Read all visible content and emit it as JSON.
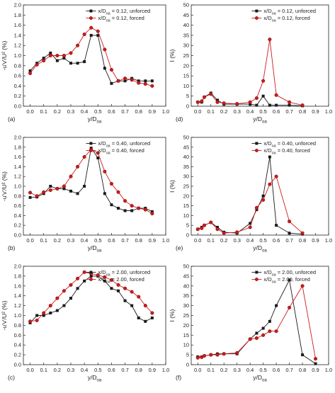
{
  "colors": {
    "unforced": "#1a1a1a",
    "forced": "#cc1b1b",
    "forced_stroke": "#7a0b0b"
  },
  "chart_data": [
    {
      "type": "line",
      "panel": "(a)",
      "ylabel": "-u'v'/U² (%)",
      "xlabel": "y/D",
      "xlim": [
        -0.05,
        1.0
      ],
      "ylim": [
        0.0,
        2.0
      ],
      "xticks": [
        "0.0",
        "0.1",
        "0.2",
        "0.3",
        "0.4",
        "0.5",
        "0.6",
        "0.7",
        "0.8",
        "0.9",
        "1.0"
      ],
      "yticks": [
        "0.0",
        "0.2",
        "0.4",
        "0.6",
        "0.8",
        "1.0",
        "1.2",
        "1.4",
        "1.6",
        "1.8",
        "2.0"
      ],
      "legend": "top-right",
      "series": [
        {
          "name": "x/D = 0.12, unforced",
          "marker": "square",
          "x": [
            0.0,
            0.05,
            0.1,
            0.15,
            0.2,
            0.25,
            0.3,
            0.35,
            0.4,
            0.45,
            0.5,
            0.55,
            0.6,
            0.65,
            0.7,
            0.75,
            0.8,
            0.85,
            0.9
          ],
          "y": [
            0.7,
            0.85,
            0.95,
            1.05,
            0.9,
            0.95,
            0.85,
            0.85,
            0.88,
            1.4,
            1.4,
            0.75,
            0.45,
            0.5,
            0.5,
            0.55,
            0.5,
            0.5,
            0.5
          ]
        },
        {
          "name": "x/D = 0.12, forced",
          "marker": "circle",
          "x": [
            0.0,
            0.05,
            0.1,
            0.15,
            0.2,
            0.25,
            0.3,
            0.35,
            0.4,
            0.45,
            0.5,
            0.55,
            0.6,
            0.65,
            0.7,
            0.75,
            0.8,
            0.85,
            0.9
          ],
          "y": [
            0.65,
            0.82,
            0.9,
            1.0,
            1.0,
            1.0,
            1.05,
            1.2,
            1.42,
            1.55,
            1.48,
            1.12,
            0.72,
            0.5,
            0.55,
            0.52,
            0.46,
            0.44,
            0.4
          ]
        }
      ]
    },
    {
      "type": "line",
      "panel": "(d)",
      "ylabel": "I (%)",
      "xlabel": "y/D",
      "xlim": [
        -0.05,
        1.0
      ],
      "ylim": [
        0,
        50
      ],
      "xticks": [
        "0.0",
        "0.1",
        "0.2",
        "0.3",
        "0.4",
        "0.5",
        "0.6",
        "0.7",
        "0.8",
        "0.9",
        "1.0"
      ],
      "yticks": [
        "0",
        "5",
        "10",
        "15",
        "20",
        "25",
        "30",
        "35",
        "40",
        "45",
        "50"
      ],
      "legend": "top-right",
      "series": [
        {
          "name": "x/D = 0.12, unforced",
          "marker": "square",
          "x": [
            0.0,
            0.03,
            0.05,
            0.1,
            0.15,
            0.2,
            0.3,
            0.4,
            0.45,
            0.5,
            0.55,
            0.6,
            0.7,
            0.8
          ],
          "y": [
            2.0,
            2.0,
            4.5,
            6.5,
            3.0,
            1.0,
            1.0,
            1.0,
            0.5,
            5.0,
            0.5,
            0.5,
            0.5,
            0.2
          ]
        },
        {
          "name": "x/D = 0.12, forced",
          "marker": "circle",
          "x": [
            0.0,
            0.03,
            0.05,
            0.1,
            0.15,
            0.2,
            0.3,
            0.4,
            0.45,
            0.5,
            0.55,
            0.6,
            0.7,
            0.8
          ],
          "y": [
            2.0,
            2.5,
            4.5,
            6.0,
            2.0,
            1.5,
            1.2,
            2.0,
            4.0,
            12.5,
            33.0,
            5.5,
            2.0,
            0.5
          ]
        }
      ]
    },
    {
      "type": "line",
      "panel": "(b)",
      "ylabel": "-u'v'/U² (%)",
      "xlabel": "y/D",
      "xlim": [
        -0.05,
        1.0
      ],
      "ylim": [
        0.0,
        2.0
      ],
      "xticks": [
        "0.0",
        "0.1",
        "0.2",
        "0.3",
        "0.4",
        "0.5",
        "0.6",
        "0.7",
        "0.8",
        "0.9",
        "1.0"
      ],
      "yticks": [
        "0.0",
        "0.2",
        "0.4",
        "0.6",
        "0.8",
        "1.0",
        "1.2",
        "1.4",
        "1.6",
        "1.8",
        "2.0"
      ],
      "legend": "top-right",
      "series": [
        {
          "name": "x/D = 0.40, unforced",
          "marker": "square",
          "x": [
            0.0,
            0.05,
            0.1,
            0.15,
            0.2,
            0.25,
            0.3,
            0.35,
            0.4,
            0.45,
            0.5,
            0.55,
            0.6,
            0.65,
            0.7,
            0.75,
            0.8,
            0.85,
            0.9
          ],
          "y": [
            0.77,
            0.78,
            0.85,
            1.0,
            0.95,
            0.95,
            0.9,
            0.85,
            1.0,
            1.78,
            1.58,
            0.85,
            0.62,
            0.55,
            0.5,
            0.5,
            0.55,
            0.55,
            0.48
          ]
        },
        {
          "name": "x/D = 0.40, forced",
          "marker": "circle",
          "x": [
            0.0,
            0.05,
            0.1,
            0.15,
            0.2,
            0.25,
            0.3,
            0.35,
            0.4,
            0.45,
            0.5,
            0.55,
            0.6,
            0.65,
            0.7,
            0.75,
            0.8,
            0.85,
            0.9
          ],
          "y": [
            0.87,
            0.8,
            0.88,
            0.92,
            0.95,
            1.0,
            1.2,
            1.4,
            1.6,
            1.75,
            1.68,
            1.3,
            1.05,
            0.88,
            0.7,
            0.6,
            0.55,
            0.52,
            0.44
          ]
        }
      ]
    },
    {
      "type": "line",
      "panel": "(e)",
      "ylabel": "I (%)",
      "xlabel": "y/D",
      "xlim": [
        -0.05,
        1.0
      ],
      "ylim": [
        0,
        50
      ],
      "xticks": [
        "0.0",
        "0.1",
        "0.2",
        "0.3",
        "0.4",
        "0.5",
        "0.6",
        "0.7",
        "0.8",
        "0.9",
        "1.0"
      ],
      "yticks": [
        "0",
        "5",
        "10",
        "15",
        "20",
        "25",
        "30",
        "35",
        "40",
        "45",
        "50"
      ],
      "legend": "top-right",
      "series": [
        {
          "name": "x/D = 0.40, unforced",
          "marker": "square",
          "x": [
            0.0,
            0.03,
            0.05,
            0.1,
            0.15,
            0.2,
            0.3,
            0.4,
            0.45,
            0.5,
            0.55,
            0.6,
            0.7,
            0.8
          ],
          "y": [
            3.0,
            4.0,
            5.0,
            6.5,
            4.0,
            1.5,
            1.0,
            6.0,
            13.0,
            20.0,
            40.0,
            5.0,
            1.0,
            0.5
          ]
        },
        {
          "name": "x/D = 0.40, forced",
          "marker": "circle",
          "x": [
            0.0,
            0.03,
            0.05,
            0.1,
            0.15,
            0.2,
            0.3,
            0.4,
            0.45,
            0.5,
            0.55,
            0.6,
            0.7,
            0.8
          ],
          "y": [
            3.0,
            3.5,
            5.0,
            6.5,
            3.0,
            1.0,
            1.5,
            4.0,
            14.0,
            18.0,
            26.0,
            30.0,
            7.0,
            1.0
          ]
        }
      ]
    },
    {
      "type": "line",
      "panel": "(c)",
      "ylabel": "-u'v'/U² (%)",
      "xlabel": "y/D",
      "xlim": [
        -0.05,
        1.0
      ],
      "ylim": [
        0.0,
        2.0
      ],
      "xticks": [
        "0.0",
        "0.1",
        "0.2",
        "0.3",
        "0.4",
        "0.5",
        "0.6",
        "0.7",
        "0.8",
        "0.9",
        "1.0"
      ],
      "yticks": [
        "0.0",
        "0.2",
        "0.4",
        "0.6",
        "0.8",
        "1.0",
        "1.2",
        "1.4",
        "1.6",
        "1.8",
        "2.0"
      ],
      "legend": "top-right",
      "series": [
        {
          "name": "x/D = 2.00, unforced",
          "marker": "square",
          "x": [
            0.0,
            0.05,
            0.1,
            0.15,
            0.2,
            0.25,
            0.3,
            0.35,
            0.4,
            0.45,
            0.5,
            0.55,
            0.6,
            0.65,
            0.7,
            0.75,
            0.8,
            0.85,
            0.9
          ],
          "y": [
            0.85,
            1.0,
            1.0,
            1.05,
            1.1,
            1.2,
            1.35,
            1.55,
            1.7,
            1.8,
            1.8,
            1.7,
            1.55,
            1.5,
            1.3,
            1.2,
            0.95,
            0.88,
            0.95
          ]
        },
        {
          "name": "x/D = 2.00, forced",
          "marker": "circle",
          "x": [
            0.0,
            0.05,
            0.1,
            0.15,
            0.2,
            0.25,
            0.3,
            0.35,
            0.4,
            0.45,
            0.5,
            0.55,
            0.6,
            0.65,
            0.7,
            0.75,
            0.8,
            0.85,
            0.9
          ],
          "y": [
            0.88,
            0.9,
            1.05,
            1.2,
            1.35,
            1.5,
            1.62,
            1.75,
            1.88,
            1.85,
            1.82,
            1.78,
            1.72,
            1.62,
            1.55,
            1.48,
            1.38,
            1.2,
            1.05
          ]
        }
      ]
    },
    {
      "type": "line",
      "panel": "(f)",
      "ylabel": "I (%)",
      "xlabel": "y/D",
      "xlim": [
        -0.05,
        1.0
      ],
      "ylim": [
        0,
        50
      ],
      "xticks": [
        "0.0",
        "0.1",
        "0.2",
        "0.3",
        "0.4",
        "0.5",
        "0.6",
        "0.7",
        "0.8",
        "0.9",
        "1.0"
      ],
      "yticks": [
        "0",
        "5",
        "10",
        "15",
        "20",
        "25",
        "30",
        "35",
        "40",
        "45",
        "50"
      ],
      "legend": "top-right",
      "series": [
        {
          "name": "x/D = 2.00, unforced",
          "marker": "square",
          "x": [
            0.0,
            0.03,
            0.05,
            0.1,
            0.15,
            0.2,
            0.3,
            0.4,
            0.45,
            0.5,
            0.55,
            0.6,
            0.7,
            0.8,
            0.9
          ],
          "y": [
            4.0,
            4.0,
            4.5,
            5.0,
            5.5,
            5.5,
            5.5,
            13.0,
            16.0,
            18.5,
            22.0,
            30.0,
            43.0,
            5.0,
            0.5
          ]
        },
        {
          "name": "x/D = 2.00, forced",
          "marker": "circle",
          "x": [
            0.0,
            0.03,
            0.05,
            0.1,
            0.15,
            0.2,
            0.3,
            0.4,
            0.45,
            0.5,
            0.55,
            0.6,
            0.7,
            0.8,
            0.9
          ],
          "y": [
            3.5,
            3.8,
            4.5,
            5.0,
            5.0,
            5.5,
            6.0,
            13.0,
            13.5,
            15.0,
            17.0,
            17.0,
            29.0,
            40.0,
            3.0
          ]
        }
      ]
    }
  ]
}
